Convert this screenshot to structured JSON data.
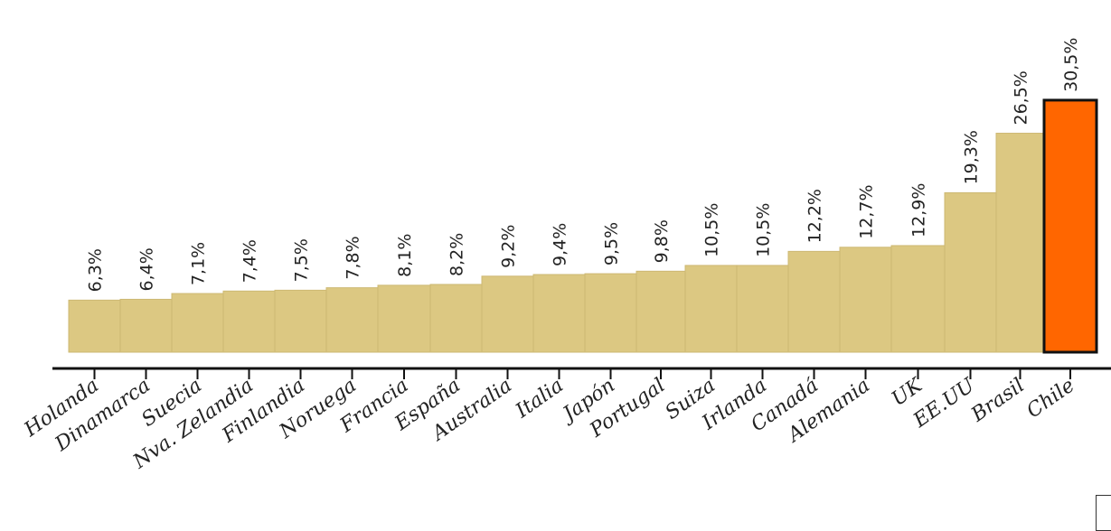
{
  "chart_data": {
    "type": "bar",
    "categories": [
      "Holanda",
      "Dinamarca",
      "Suecia",
      "Nva. Zelandia",
      "Finlandia",
      "Noruega",
      "Francia",
      "España",
      "Australia",
      "Italia",
      "Japón",
      "Portugal",
      "Suiza",
      "Irlanda",
      "Canadá",
      "Alemania",
      "UK",
      "EE.UU",
      "Brasil",
      "Chile"
    ],
    "values": [
      6.3,
      6.4,
      7.1,
      7.4,
      7.5,
      7.8,
      8.1,
      8.2,
      9.2,
      9.4,
      9.5,
      9.8,
      10.5,
      10.5,
      12.2,
      12.7,
      12.9,
      19.3,
      26.5,
      30.5
    ],
    "value_labels": [
      "6,3%",
      "6,4%",
      "7,1%",
      "7,4%",
      "7,5%",
      "7,8%",
      "8,1%",
      "8,2%",
      "9,2%",
      "9,4%",
      "9,5%",
      "9,8%",
      "10,5%",
      "10,5%",
      "12,2%",
      "12,7%",
      "12,9%",
      "19,3%",
      "26,5%",
      "30,5%"
    ],
    "highlight": "Chile",
    "colors": {
      "bar": "#dcc882",
      "highlight": "#ff6600",
      "axis": "#111111"
    },
    "title": "",
    "xlabel": "",
    "ylabel": "",
    "grid": false,
    "legend": "none"
  }
}
